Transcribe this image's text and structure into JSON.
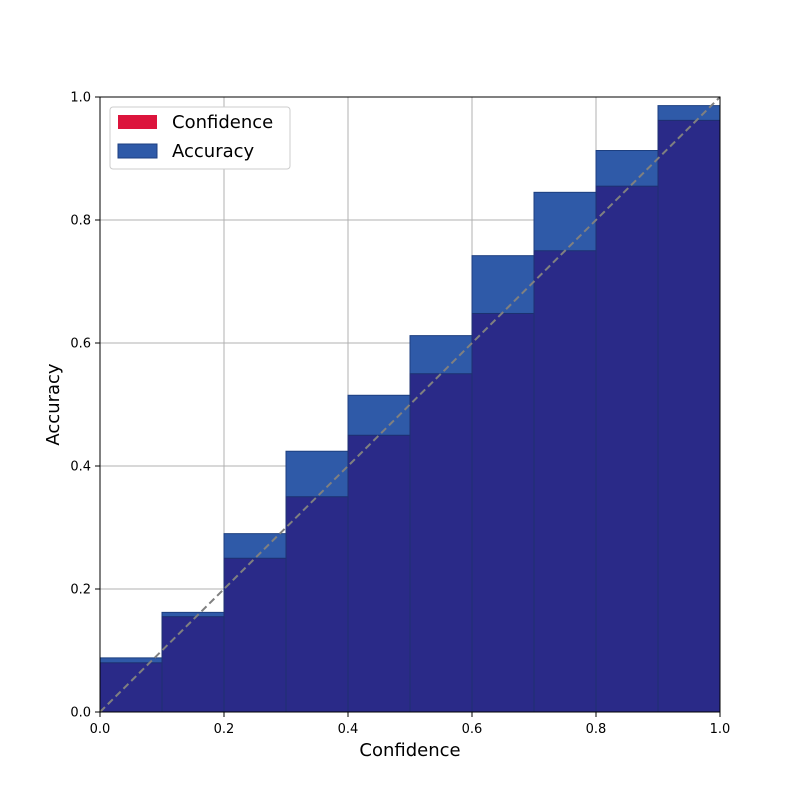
{
  "chart_data": {
    "type": "bar",
    "xlabel": "Confidence",
    "ylabel": "Accuracy",
    "xlim": [
      0.0,
      1.0
    ],
    "ylim": [
      0.0,
      1.0
    ],
    "x_ticks": [
      "0.0",
      "0.2",
      "0.4",
      "0.6",
      "0.8",
      "1.0"
    ],
    "y_ticks": [
      "0.0",
      "0.2",
      "0.4",
      "0.6",
      "0.8",
      "1.0"
    ],
    "grid": true,
    "legend_position": "top-left",
    "bin_edges": [
      0.0,
      0.1,
      0.2,
      0.3,
      0.4,
      0.5,
      0.6,
      0.7,
      0.8,
      0.9,
      1.0
    ],
    "series": [
      {
        "name": "Confidence",
        "color": "#dc143c",
        "values": [
          0.08,
          0.155,
          0.25,
          0.35,
          0.45,
          0.55,
          0.648,
          0.75,
          0.855,
          0.962
        ]
      },
      {
        "name": "Accuracy",
        "color": "#2f5aa8",
        "values": [
          0.088,
          0.162,
          0.29,
          0.424,
          0.515,
          0.612,
          0.742,
          0.845,
          0.913,
          0.986
        ]
      }
    ],
    "reference_line": {
      "x": [
        0.0,
        1.0
      ],
      "y": [
        0.0,
        1.0
      ],
      "style": "dashed",
      "color": "#808080"
    }
  }
}
